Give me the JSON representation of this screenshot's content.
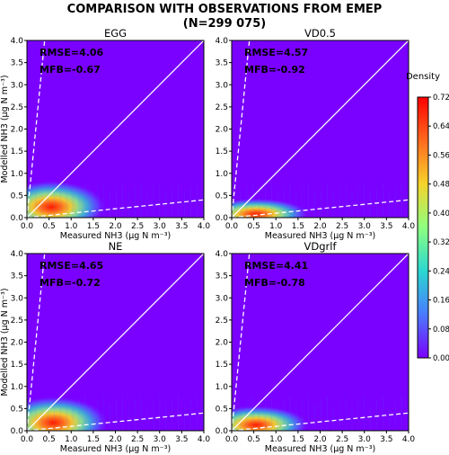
{
  "figure": {
    "title_line1": "COMPARISON WITH OBSERVATIONS FROM EMEP",
    "title_line2": "(N=299 075)"
  },
  "chart_data": [
    {
      "type": "heatmap",
      "title": "EGG",
      "xlabel": "Measured NH3 (µg N m⁻³)",
      "ylabel": "Modelled NH3 (µg N m⁻³)",
      "xlim": [
        0,
        4
      ],
      "ylim": [
        0,
        4
      ],
      "xticks": [
        "0.0",
        "0.5",
        "1.0",
        "1.5",
        "2.0",
        "2.5",
        "3.0",
        "3.5",
        "4.0"
      ],
      "yticks": [
        "0.0",
        "0.5",
        "1.0",
        "1.5",
        "2.0",
        "2.5",
        "3.0",
        "3.5",
        "4.0"
      ],
      "annotations": [
        "RMSE=4.06",
        "MFB=-0.67"
      ],
      "reference_lines": [
        {
          "label": "1:1",
          "slope": 1,
          "style": "solid"
        },
        {
          "label": "upper",
          "slope": 10,
          "style": "dashed"
        },
        {
          "label": "lower",
          "slope": 0.1,
          "style": "dashed"
        }
      ],
      "density_peak": {
        "x": 0.55,
        "y": 0.28,
        "value": 0.72
      }
    },
    {
      "type": "heatmap",
      "title": "VD0.5",
      "xlabel": "Measured NH3 (µg N m⁻³)",
      "ylabel": "",
      "xlim": [
        0,
        4
      ],
      "ylim": [
        0,
        4
      ],
      "xticks": [
        "0.0",
        "0.5",
        "1.0",
        "1.5",
        "2.0",
        "2.5",
        "3.0",
        "3.5",
        "4.0"
      ],
      "yticks": [
        "0.0",
        "0.5",
        "1.0",
        "1.5",
        "2.0",
        "2.5",
        "3.0",
        "3.5",
        "4.0"
      ],
      "annotations": [
        "RMSE=4.57",
        "MFB=-0.92"
      ],
      "reference_lines": [
        {
          "label": "1:1",
          "slope": 1,
          "style": "solid"
        },
        {
          "label": "upper",
          "slope": 10,
          "style": "dashed"
        },
        {
          "label": "lower",
          "slope": 0.1,
          "style": "dashed"
        }
      ],
      "density_peak": {
        "x": 0.55,
        "y": 0.12,
        "value": 0.72
      }
    },
    {
      "type": "heatmap",
      "title": "NE",
      "xlabel": "Measured NH3 (µg N m⁻³)",
      "ylabel": "Modelled NH3 (µg N m⁻³)",
      "xlim": [
        0,
        4
      ],
      "ylim": [
        0,
        4
      ],
      "xticks": [
        "0.0",
        "0.5",
        "1.0",
        "1.5",
        "2.0",
        "2.5",
        "3.0",
        "3.5",
        "4.0"
      ],
      "yticks": [
        "0.0",
        "0.5",
        "1.0",
        "1.5",
        "2.0",
        "2.5",
        "3.0",
        "3.5",
        "4.0"
      ],
      "annotations": [
        "RMSE=4.65",
        "MFB=-0.72"
      ],
      "reference_lines": [
        {
          "label": "1:1",
          "slope": 1,
          "style": "solid"
        },
        {
          "label": "upper",
          "slope": 10,
          "style": "dashed"
        },
        {
          "label": "lower",
          "slope": 0.1,
          "style": "dashed"
        }
      ],
      "density_peak": {
        "x": 0.6,
        "y": 0.22,
        "value": 0.72
      }
    },
    {
      "type": "heatmap",
      "title": "VDgrlf",
      "xlabel": "Measured NH3 (µg N m⁻³)",
      "ylabel": "",
      "xlim": [
        0,
        4
      ],
      "ylim": [
        0,
        4
      ],
      "xticks": [
        "0.0",
        "0.5",
        "1.0",
        "1.5",
        "2.0",
        "2.5",
        "3.0",
        "3.5",
        "4.0"
      ],
      "yticks": [
        "0.0",
        "0.5",
        "1.0",
        "1.5",
        "2.0",
        "2.5",
        "3.0",
        "3.5",
        "4.0"
      ],
      "annotations": [
        "RMSE=4.41",
        "MFB=-0.78"
      ],
      "reference_lines": [
        {
          "label": "1:1",
          "slope": 1,
          "style": "solid"
        },
        {
          "label": "upper",
          "slope": 10,
          "style": "dashed"
        },
        {
          "label": "lower",
          "slope": 0.1,
          "style": "dashed"
        }
      ],
      "density_peak": {
        "x": 0.55,
        "y": 0.17,
        "value": 0.72
      }
    }
  ],
  "colorbar": {
    "label": "Density",
    "ticks": [
      "0.00",
      "0.08",
      "0.16",
      "0.24",
      "0.32",
      "0.40",
      "0.48",
      "0.56",
      "0.64",
      "0.72"
    ],
    "range": [
      0,
      0.72
    ],
    "colors": [
      "#7a00ff",
      "#4a7bff",
      "#2ad8d0",
      "#8dff80",
      "#f5d32b",
      "#ff6a1e",
      "#ff0000"
    ]
  },
  "background_color": "#7a00ff"
}
